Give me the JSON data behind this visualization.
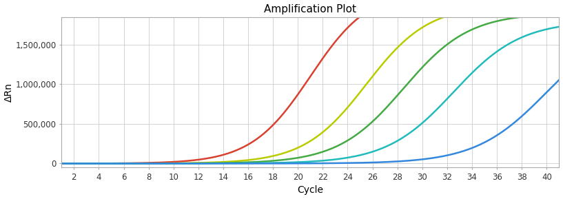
{
  "title": "Amplification Plot",
  "xlabel": "Cycle",
  "ylabel": "ΔRn",
  "xlim": [
    1,
    41
  ],
  "ylim": [
    -50000,
    1850000
  ],
  "xticks": [
    2,
    4,
    6,
    8,
    10,
    12,
    14,
    16,
    18,
    20,
    22,
    24,
    26,
    28,
    30,
    32,
    34,
    36,
    38,
    40
  ],
  "yticks": [
    0,
    500000,
    1000000,
    1500000
  ],
  "ytick_labels": [
    "0",
    "500,000",
    "1,000,000",
    "1,500,000"
  ],
  "curves": [
    {
      "color": "#d94030",
      "midpoint": 21.0,
      "L": 2200000,
      "k": 0.42
    },
    {
      "color": "#b8cc00",
      "midpoint": 25.5,
      "L": 2000000,
      "k": 0.4
    },
    {
      "color": "#44aa44",
      "midpoint": 28.5,
      "L": 1900000,
      "k": 0.38
    },
    {
      "color": "#22bbbb",
      "midpoint": 32.5,
      "L": 1800000,
      "k": 0.37
    },
    {
      "color": "#3388dd",
      "midpoint": 40.0,
      "L": 1800000,
      "k": 0.35
    }
  ],
  "background_color": "#ffffff",
  "grid_color": "#cccccc",
  "title_fontsize": 11,
  "axis_label_fontsize": 10,
  "tick_fontsize": 8.5
}
